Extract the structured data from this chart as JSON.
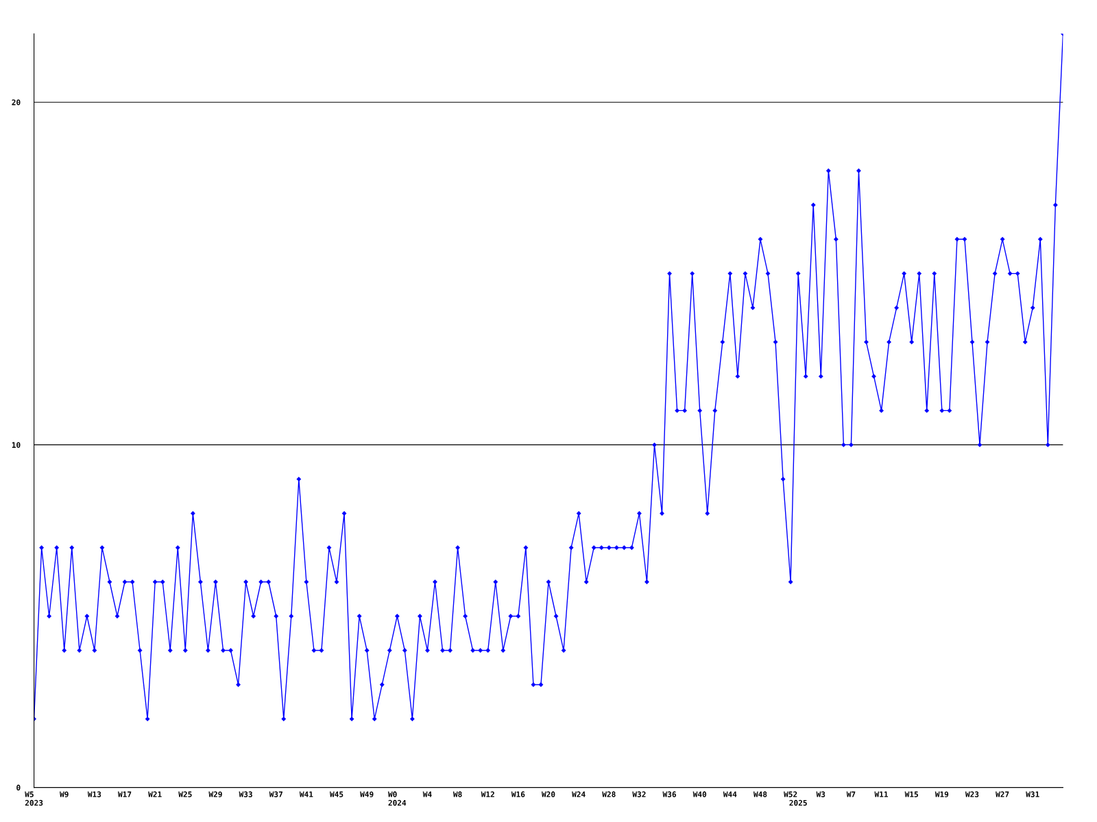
{
  "chart_data": {
    "type": "line",
    "categories": [
      "W5\n2023",
      null,
      null,
      null,
      "W9",
      null,
      null,
      null,
      "W13",
      null,
      null,
      null,
      "W17",
      null,
      null,
      null,
      "W21",
      null,
      null,
      null,
      "W25",
      null,
      null,
      null,
      "W29",
      null,
      null,
      null,
      "W33",
      null,
      null,
      null,
      "W37",
      null,
      null,
      null,
      "W41",
      null,
      null,
      null,
      "W45",
      null,
      null,
      null,
      "W49",
      null,
      null,
      null,
      "W0\n2024",
      null,
      null,
      null,
      "W4",
      null,
      null,
      null,
      "W8",
      null,
      null,
      null,
      "W12",
      null,
      null,
      null,
      "W16",
      null,
      null,
      null,
      "W20",
      null,
      null,
      null,
      "W24",
      null,
      null,
      null,
      "W28",
      null,
      null,
      null,
      "W32",
      null,
      null,
      null,
      "W36",
      null,
      null,
      null,
      "W40",
      null,
      null,
      null,
      "W44",
      null,
      null,
      null,
      "W48",
      null,
      null,
      null,
      "W52",
      "\n2025",
      null,
      null,
      "W3",
      null,
      null,
      null,
      "W7",
      null,
      null,
      null,
      "W11",
      null,
      null,
      null,
      "W15",
      null,
      null,
      null,
      "W19",
      null,
      null,
      null,
      "W23",
      null,
      null,
      null,
      "W27",
      null,
      null,
      null,
      "W31",
      null,
      null,
      null,
      null
    ],
    "series": [
      {
        "color": "#0000ff",
        "values": [
          2,
          7,
          5,
          7,
          4,
          7,
          4,
          5,
          4,
          7,
          6,
          5,
          6,
          6,
          4,
          2,
          6,
          6,
          4,
          7,
          4,
          8,
          6,
          4,
          6,
          4,
          4,
          3,
          6,
          5,
          6,
          6,
          5,
          2,
          5,
          9,
          6,
          4,
          4,
          7,
          6,
          8,
          2,
          5,
          4,
          2,
          3,
          4,
          5,
          4,
          2,
          5,
          4,
          6,
          4,
          4,
          7,
          5,
          4,
          4,
          4,
          6,
          4,
          5,
          5,
          7,
          3,
          3,
          6,
          5,
          4,
          7,
          8,
          6,
          7,
          7,
          7,
          7,
          7,
          7,
          8,
          6,
          10,
          8,
          15,
          11,
          11,
          15,
          11,
          8,
          11,
          13,
          15,
          12,
          15,
          14,
          16,
          15,
          13,
          9,
          6,
          15,
          12,
          17,
          12,
          18,
          16,
          10,
          10,
          18,
          13,
          12,
          11,
          13,
          14,
          15,
          13,
          15,
          11,
          15,
          11,
          11,
          16,
          16,
          13,
          10,
          13,
          15,
          16,
          15,
          15,
          13,
          14,
          16,
          10,
          17,
          22
        ]
      }
    ],
    "ylim": [
      0,
      22
    ],
    "yticks": [
      0,
      10,
      20
    ],
    "grid": "y",
    "marker": "diamond",
    "line_style": "solid"
  }
}
